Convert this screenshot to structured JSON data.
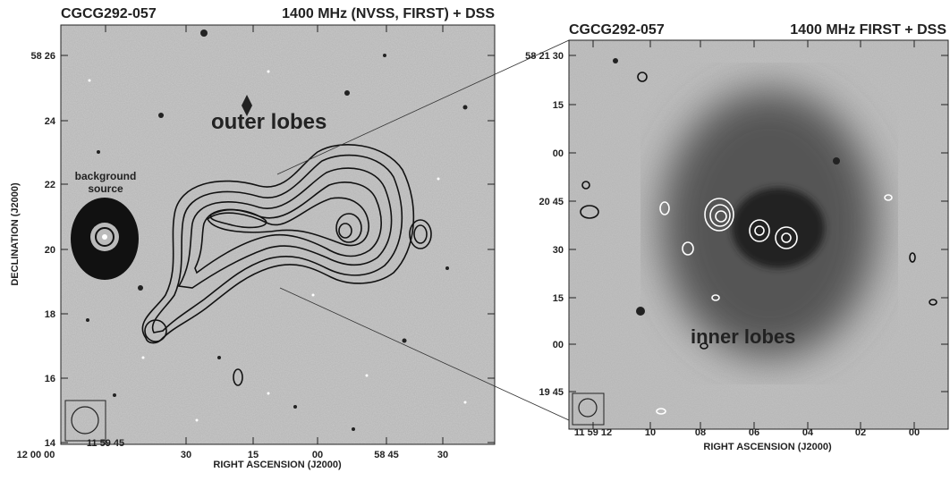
{
  "panels": [
    {
      "title_left": "CGCG292-057",
      "title_right": "1400 MHz (NVSS, FIRST) + DSS",
      "y_axis_label": "DECLINATION (J2000)",
      "x_axis_label": "RIGHT ASCENSION (J2000)",
      "y_ticks": [
        "58 26",
        "24",
        "22",
        "20",
        "18",
        "16",
        "14"
      ],
      "x_ticks": [
        "12 00 00",
        "11 59 45",
        "30",
        "15",
        "00",
        "58 45",
        "30"
      ],
      "annotations": [
        "outer lobes",
        "background",
        "source"
      ]
    },
    {
      "title_left": "CGCG292-057",
      "title_right": "1400 MHz FIRST + DSS",
      "x_axis_label": "RIGHT ASCENSION (J2000)",
      "y_ticks": [
        "58 21 30",
        "15",
        "00",
        "20 45",
        "30",
        "15",
        "00",
        "19 45"
      ],
      "x_ticks": [
        "11 59 12",
        "10",
        "08",
        "06",
        "04",
        "02",
        "00"
      ],
      "annotations": [
        "inner lobes"
      ]
    }
  ]
}
